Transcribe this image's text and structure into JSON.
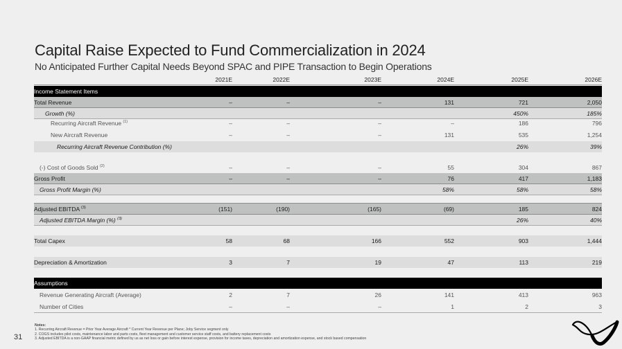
{
  "header": {
    "title": "Capital Raise Expected to Fund Commercialization in 2024",
    "subtitle": "No Anticipated Further Capital Needs Beyond SPAC and PIPE Transaction to Begin Operations"
  },
  "table": {
    "years": [
      "2021E",
      "2022E",
      "2023E",
      "2024E",
      "2025E",
      "2026E"
    ],
    "sections": {
      "income": "Income Statement Items",
      "assumptions": "Assumptions"
    },
    "rows": {
      "total_revenue": {
        "label": "Total Revenue",
        "values": [
          "–",
          "–",
          "–",
          "131",
          "721",
          "2,050"
        ]
      },
      "growth": {
        "label": "Growth (%)",
        "values": [
          "",
          "",
          "",
          "",
          "450%",
          "185%"
        ]
      },
      "recurring": {
        "label": "Recurring Aircraft Revenue",
        "note": "(1)",
        "values": [
          "–",
          "–",
          "–",
          "–",
          "186",
          "796"
        ]
      },
      "new_aircraft": {
        "label": "New Aircraft Revenue",
        "values": [
          "–",
          "–",
          "–",
          "131",
          "535",
          "1,254"
        ]
      },
      "recurring_contrib": {
        "label": "Recurring Aircraft Revenue Contribution (%)",
        "values": [
          "",
          "",
          "",
          "",
          "26%",
          "39%"
        ]
      },
      "cogs": {
        "label": "(-) Cost of Goods Sold",
        "note": "(2)",
        "values": [
          "–",
          "–",
          "–",
          "55",
          "304",
          "867"
        ]
      },
      "gross_profit": {
        "label": "Gross Profit",
        "values": [
          "–",
          "–",
          "–",
          "76",
          "417",
          "1,183"
        ]
      },
      "gross_margin": {
        "label": "Gross Profit Margin (%)",
        "values": [
          "",
          "",
          "",
          "58%",
          "58%",
          "58%"
        ]
      },
      "ebitda": {
        "label": "Adjusted EBITDA",
        "note": "(3)",
        "values": [
          "(151)",
          "(190)",
          "(165)",
          "(69)",
          "185",
          "824"
        ]
      },
      "ebitda_margin": {
        "label": "Adjusted EBITDA Margin (%)",
        "note": "(3)",
        "values": [
          "",
          "",
          "",
          "",
          "26%",
          "40%"
        ]
      },
      "capex": {
        "label": "Total Capex",
        "values": [
          "58",
          "68",
          "166",
          "552",
          "903",
          "1,444"
        ]
      },
      "da": {
        "label": "Depreciation & Amortization",
        "values": [
          "3",
          "7",
          "19",
          "47",
          "113",
          "219"
        ]
      },
      "aircraft": {
        "label": "Revenue Generating Aircraft (Average)",
        "values": [
          "2",
          "7",
          "26",
          "141",
          "413",
          "963"
        ]
      },
      "cities": {
        "label": "Number of Cities",
        "values": [
          "–",
          "–",
          "–",
          "1",
          "2",
          "3"
        ]
      }
    }
  },
  "notes": {
    "heading": "Notes:",
    "items": [
      "1.  Recurring Aircraft Revenue = Prior Year Average Aircraft * Current Year Revenue per Plane; Joby Service segment only",
      "2.  COGS includes pilot costs, maintenance labor and parts costs, fleet management and customer service staff costs, and battery replacement costs",
      "3.  Adjusted EBITDA is a non-GAAP financial metric defined by us as net loss or gain before interest expense, provision for income taxes, depreciation and amortization expense, and stock based compensation"
    ]
  },
  "footer": {
    "page_number": "31",
    "logo": "joby-logo"
  }
}
